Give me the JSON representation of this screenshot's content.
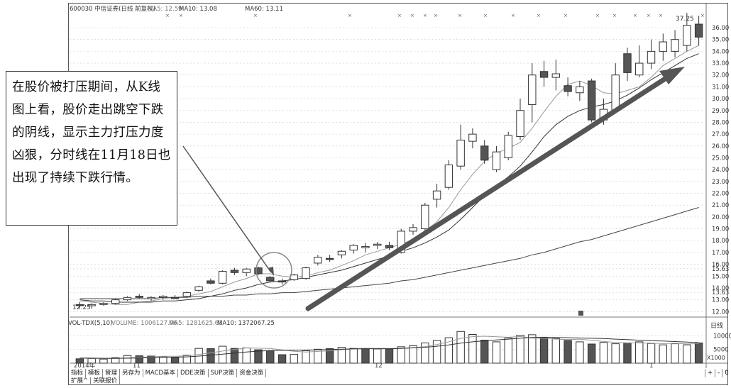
{
  "header": {
    "stock": "600030 中信证券(日线 前复权)",
    "ma5": "MA5: 12.59",
    "ma10": "MA10: 13.08",
    "ma60": "MA60: 13.11"
  },
  "volume_header": {
    "indicator": "VOL-TDX(5,10)",
    "volume": "VOLUME: 1006127.06",
    "ma5": "MA5: 1281625.63",
    "ma10": "MA10: 1372067.25"
  },
  "annotation": "在股价被打压期间，从K线图上看，股价走出跳空下跌的阴线，显示主力打压力度凶狠，分时线在11月18日也出现了持续下跌行情。",
  "period_label": "日线",
  "toolbar": {
    "items": [
      "指标",
      "模板",
      "管理",
      "另存为",
      "MACD基本",
      "DDE决策",
      "SUP决策",
      "资金决策"
    ],
    "items2": [
      "扩展^",
      "关联报价"
    ],
    "right": [
      "+",
      "-",
      "0"
    ]
  },
  "colors": {
    "up": "#ffffff",
    "down": "#555555",
    "arrow": "#555555",
    "grid": "#cccccc"
  },
  "chart_data": [
    {
      "type": "candlestick",
      "title": "600030 中信证券(日线 前复权)",
      "y_ticks": [
        12.0,
        13.0,
        13.63,
        14.0,
        15.0,
        15.63,
        16.0,
        17.0,
        18.0,
        19.0,
        20.0,
        21.0,
        22.0,
        23.0,
        24.0,
        25.0,
        26.0,
        27.0,
        28.0,
        29.0,
        30.0,
        31.0,
        32.0,
        33.0,
        34.0,
        35.0,
        36.0
      ],
      "ylim": [
        11.6,
        36.9
      ],
      "x_labels": [
        "2014年",
        "11",
        "12",
        "1"
      ],
      "annotations": {
        "high": "37.25",
        "low": "12.25"
      },
      "candles": [
        {
          "o": 12.6,
          "h": 12.8,
          "l": 12.3,
          "c": 12.5
        },
        {
          "o": 12.5,
          "h": 12.7,
          "l": 12.25,
          "c": 12.6
        },
        {
          "o": 12.6,
          "h": 12.8,
          "l": 12.5,
          "c": 12.7
        },
        {
          "o": 12.7,
          "h": 13.1,
          "l": 12.6,
          "c": 13.0
        },
        {
          "o": 13.0,
          "h": 13.3,
          "l": 12.9,
          "c": 13.2
        },
        {
          "o": 13.3,
          "h": 13.5,
          "l": 13.1,
          "c": 13.2
        },
        {
          "o": 13.1,
          "h": 13.3,
          "l": 12.9,
          "c": 13.2
        },
        {
          "o": 13.2,
          "h": 13.4,
          "l": 13.0,
          "c": 13.3
        },
        {
          "o": 13.2,
          "h": 13.4,
          "l": 13.1,
          "c": 13.1
        },
        {
          "o": 13.3,
          "h": 13.7,
          "l": 13.2,
          "c": 13.6
        },
        {
          "o": 13.8,
          "h": 14.2,
          "l": 13.7,
          "c": 14.1
        },
        {
          "o": 14.6,
          "h": 14.8,
          "l": 14.3,
          "c": 14.4
        },
        {
          "o": 14.4,
          "h": 15.5,
          "l": 14.3,
          "c": 15.4
        },
        {
          "o": 15.5,
          "h": 15.7,
          "l": 15.1,
          "c": 15.3
        },
        {
          "o": 15.3,
          "h": 15.7,
          "l": 15.0,
          "c": 15.6
        },
        {
          "o": 15.7,
          "h": 15.8,
          "l": 15.1,
          "c": 15.2
        },
        {
          "o": 14.9,
          "h": 15.0,
          "l": 14.5,
          "c": 14.6
        },
        {
          "o": 14.6,
          "h": 14.8,
          "l": 14.3,
          "c": 14.5
        },
        {
          "o": 14.7,
          "h": 15.2,
          "l": 14.6,
          "c": 15.1
        },
        {
          "o": 14.8,
          "h": 15.8,
          "l": 14.7,
          "c": 15.7
        },
        {
          "o": 16.1,
          "h": 16.8,
          "l": 15.9,
          "c": 16.6
        },
        {
          "o": 16.5,
          "h": 16.8,
          "l": 16.2,
          "c": 16.4
        },
        {
          "o": 16.8,
          "h": 17.2,
          "l": 16.5,
          "c": 17.1
        },
        {
          "o": 17.2,
          "h": 17.7,
          "l": 16.9,
          "c": 17.6
        },
        {
          "o": 17.4,
          "h": 17.8,
          "l": 17.0,
          "c": 17.5
        },
        {
          "o": 17.6,
          "h": 17.9,
          "l": 17.3,
          "c": 17.7
        },
        {
          "o": 17.6,
          "h": 17.9,
          "l": 17.2,
          "c": 17.4
        },
        {
          "o": 17.0,
          "h": 19.0,
          "l": 16.9,
          "c": 18.8
        },
        {
          "o": 18.8,
          "h": 19.4,
          "l": 18.5,
          "c": 19.1
        },
        {
          "o": 19.0,
          "h": 21.2,
          "l": 18.8,
          "c": 21.0
        },
        {
          "o": 21.5,
          "h": 22.8,
          "l": 20.8,
          "c": 22.2
        },
        {
          "o": 22.5,
          "h": 24.8,
          "l": 22.3,
          "c": 24.4
        },
        {
          "o": 24.3,
          "h": 27.8,
          "l": 24.0,
          "c": 26.5
        },
        {
          "o": 26.4,
          "h": 27.5,
          "l": 25.8,
          "c": 27.0
        },
        {
          "o": 26.0,
          "h": 26.5,
          "l": 24.5,
          "c": 24.8
        },
        {
          "o": 24.0,
          "h": 26.0,
          "l": 23.8,
          "c": 25.5
        },
        {
          "o": 25.0,
          "h": 27.2,
          "l": 24.8,
          "c": 26.9
        },
        {
          "o": 26.8,
          "h": 30.0,
          "l": 26.5,
          "c": 29.0
        },
        {
          "o": 29.5,
          "h": 33.0,
          "l": 28.0,
          "c": 32.0
        },
        {
          "o": 32.3,
          "h": 33.2,
          "l": 31.0,
          "c": 31.8
        },
        {
          "o": 31.8,
          "h": 33.3,
          "l": 30.7,
          "c": 32.1
        },
        {
          "o": 31.1,
          "h": 31.8,
          "l": 30.2,
          "c": 30.6
        },
        {
          "o": 30.5,
          "h": 31.5,
          "l": 29.8,
          "c": 31.0
        },
        {
          "o": 31.5,
          "h": 31.7,
          "l": 28.0,
          "c": 28.2
        },
        {
          "o": 28.2,
          "h": 30.0,
          "l": 27.8,
          "c": 29.1
        },
        {
          "o": 29.0,
          "h": 33.0,
          "l": 28.8,
          "c": 32.0
        },
        {
          "o": 33.8,
          "h": 34.3,
          "l": 31.5,
          "c": 32.2
        },
        {
          "o": 32.0,
          "h": 34.5,
          "l": 31.8,
          "c": 33.0
        },
        {
          "o": 33.0,
          "h": 35.0,
          "l": 32.5,
          "c": 34.0
        },
        {
          "o": 34.0,
          "h": 35.5,
          "l": 33.2,
          "c": 34.8
        },
        {
          "o": 34.0,
          "h": 35.8,
          "l": 33.5,
          "c": 35.0
        },
        {
          "o": 34.5,
          "h": 37.25,
          "l": 34.0,
          "c": 36.2
        },
        {
          "o": 36.3,
          "h": 37.0,
          "l": 34.5,
          "c": 35.2
        }
      ],
      "series": [
        {
          "name": "MA5",
          "values": [
            12.9,
            12.8,
            12.7,
            12.6,
            12.6,
            12.8,
            12.9,
            13.1,
            13.2,
            13.3,
            13.5,
            13.7,
            14.1,
            14.5,
            14.8,
            15.2,
            15.2,
            15.0,
            14.9,
            15.0,
            15.3,
            15.5,
            15.9,
            16.3,
            16.8,
            17.1,
            17.4,
            17.7,
            18.1,
            18.8,
            19.6,
            20.8,
            22.3,
            23.6,
            24.7,
            25.4,
            25.8,
            26.3,
            27.5,
            28.9,
            30.2,
            31.2,
            31.5,
            31.1,
            30.5,
            30.4,
            30.7,
            31.0,
            31.8,
            32.8,
            33.4,
            34.0,
            34.5
          ]
        },
        {
          "name": "MA10",
          "values": [
            13.0,
            12.9,
            12.9,
            12.8,
            12.8,
            12.8,
            12.8,
            12.9,
            12.9,
            13.0,
            13.1,
            13.3,
            13.5,
            13.8,
            14.0,
            14.3,
            14.5,
            14.6,
            14.7,
            14.9,
            15.1,
            15.3,
            15.5,
            15.8,
            16.1,
            16.4,
            16.7,
            17.1,
            17.4,
            17.8,
            18.3,
            18.9,
            19.8,
            20.8,
            21.8,
            22.6,
            23.4,
            24.3,
            25.5,
            26.8,
            27.8,
            28.5,
            29.0,
            29.3,
            29.5,
            29.8,
            30.3,
            30.9,
            31.6,
            32.2,
            32.8,
            33.4,
            33.8
          ]
        },
        {
          "name": "MA60",
          "values": [
            13.1,
            13.1,
            13.1,
            13.1,
            13.1,
            13.1,
            13.1,
            13.2,
            13.2,
            13.2,
            13.3,
            13.3,
            13.3,
            13.4,
            13.4,
            13.5,
            13.5,
            13.6,
            13.6,
            13.7,
            13.8,
            13.9,
            14.0,
            14.1,
            14.2,
            14.3,
            14.4,
            14.6,
            14.7,
            14.9,
            15.1,
            15.3,
            15.5,
            15.7,
            15.9,
            16.1,
            16.3,
            16.5,
            16.8,
            17.0,
            17.3,
            17.6,
            17.9,
            18.1,
            18.4,
            18.7,
            19.0,
            19.3,
            19.6,
            19.9,
            20.2,
            20.5,
            20.8
          ]
        }
      ]
    },
    {
      "type": "bar",
      "title": "VOL-TDX(5,10)",
      "y_ticks": [
        5000,
        10000
      ],
      "ylim": [
        0,
        14000
      ],
      "unit": "X1000",
      "values": [
        1600,
        1700,
        1500,
        2000,
        2800,
        2700,
        2600,
        2400,
        2200,
        2900,
        5400,
        5300,
        6200,
        5400,
        5600,
        4900,
        4500,
        3100,
        3200,
        4600,
        5100,
        5300,
        5800,
        5400,
        5400,
        5200,
        5200,
        6000,
        6400,
        7400,
        8300,
        9300,
        11600,
        10500,
        8400,
        7800,
        9200,
        10200,
        10400,
        9400,
        9000,
        8300,
        7800,
        7000,
        7600,
        7100,
        7400,
        7800,
        7200,
        6700,
        7100,
        6700,
        7400
      ],
      "down": [
        1,
        0,
        0,
        0,
        0,
        1,
        1,
        0,
        1,
        0,
        0,
        1,
        0,
        1,
        0,
        1,
        1,
        1,
        0,
        0,
        0,
        1,
        0,
        0,
        1,
        0,
        1,
        0,
        0,
        0,
        0,
        0,
        0,
        0,
        1,
        0,
        0,
        0,
        0,
        1,
        0,
        1,
        0,
        1,
        0,
        0,
        1,
        0,
        0,
        0,
        0,
        0,
        1
      ],
      "series": [
        {
          "name": "MA5",
          "values": [
            1800,
            1750,
            1700,
            1720,
            1920,
            2140,
            2320,
            2520,
            2540,
            2640,
            3220,
            3780,
            4440,
            5020,
            5580,
            5480,
            5360,
            4860,
            4320,
            4080,
            4300,
            4540,
            4900,
            5240,
            5420,
            5420,
            5400,
            5400,
            5680,
            6060,
            6820,
            7820,
            9060,
            9700,
            9840,
            9660,
            9460,
            9760,
            9160,
            9080,
            8780,
            8620,
            8800,
            8340,
            7940,
            7580,
            7420,
            7400,
            7300,
            7160,
            7260,
            7020,
            7140
          ]
        },
        {
          "name": "MA10",
          "values": [
            1900,
            1850,
            1800,
            1780,
            1820,
            1900,
            2000,
            2100,
            2200,
            2300,
            2600,
            2900,
            3300,
            3700,
            4100,
            4400,
            4600,
            4700,
            4700,
            4800,
            4900,
            5000,
            5100,
            5200,
            5300,
            5300,
            5300,
            5400,
            5600,
            5800,
            6200,
            6700,
            7300,
            7800,
            8200,
            8500,
            8800,
            9100,
            9400,
            9500,
            9400,
            9300,
            9200,
            9100,
            9000,
            8800,
            8600,
            8400,
            8200,
            8100,
            7900,
            7700,
            7500
          ]
        }
      ]
    }
  ]
}
